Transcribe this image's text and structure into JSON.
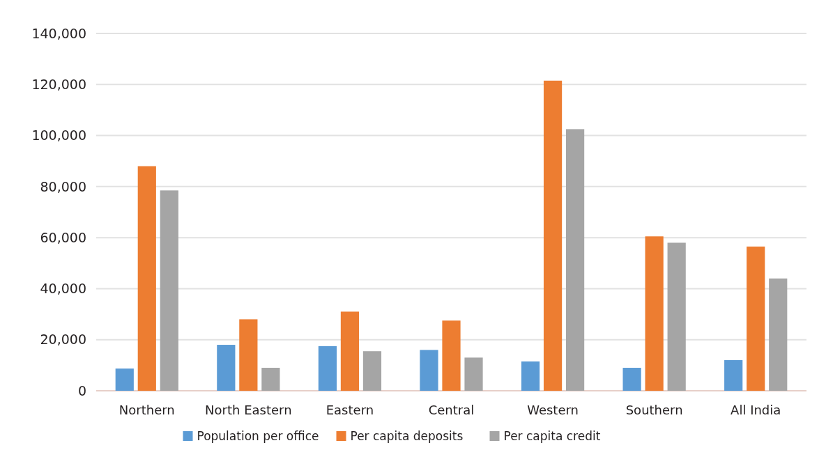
{
  "chart_data": {
    "type": "bar",
    "categories": [
      "Northern",
      "North Eastern",
      "Eastern",
      "Central",
      "Western",
      "Southern",
      "All India"
    ],
    "series": [
      {
        "name": "Population per office",
        "color": "#5b9bd5",
        "values": [
          8700,
          18000,
          17500,
          16000,
          11500,
          9000,
          12000
        ]
      },
      {
        "name": "Per capita deposits",
        "color": "#ed7d31",
        "values": [
          88000,
          28000,
          31000,
          27500,
          121500,
          60500,
          56500
        ]
      },
      {
        "name": "Per capita credit",
        "color": "#a5a5a5",
        "values": [
          78500,
          9000,
          15500,
          13000,
          102500,
          58000,
          44000
        ]
      }
    ],
    "ylim": [
      0,
      140000
    ],
    "yticks": [
      {
        "value": 0,
        "label": "0"
      },
      {
        "value": 20000,
        "label": "20,000"
      },
      {
        "value": 40000,
        "label": "40,000"
      },
      {
        "value": 60000,
        "label": "60,000"
      },
      {
        "value": 80000,
        "label": "80,000"
      },
      {
        "value": 100000,
        "label": "100,000"
      },
      {
        "value": 120000,
        "label": "120,000"
      },
      {
        "value": 140000,
        "label": "140,000"
      }
    ],
    "grid": "y",
    "legend": "bottom"
  }
}
